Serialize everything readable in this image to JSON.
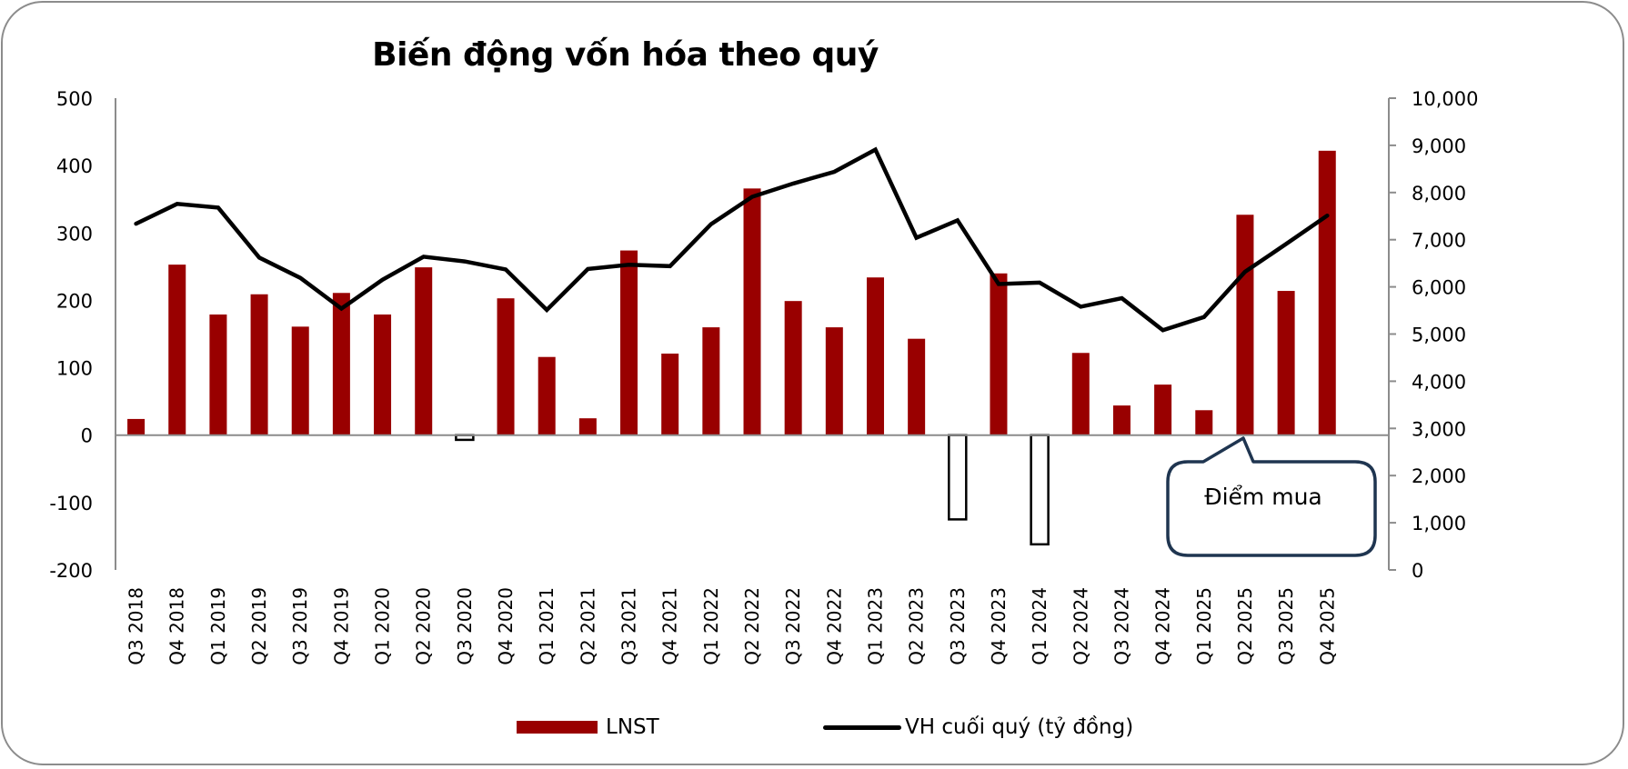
{
  "chart_data": {
    "type": "bar+line",
    "title": "Biến động vốn hóa theo quý",
    "categories": [
      "Q3 2018",
      "Q4 2018",
      "Q1 2019",
      "Q2 2019",
      "Q3 2019",
      "Q4 2019",
      "Q1 2020",
      "Q2 2020",
      "Q3 2020",
      "Q4 2020",
      "Q1 2021",
      "Q2 2021",
      "Q3 2021",
      "Q4 2021",
      "Q1 2022",
      "Q2 2022",
      "Q3 2022",
      "Q4 2022",
      "Q1 2023",
      "Q2 2023",
      "Q3 2023",
      "Q4 2023",
      "Q1 2024",
      "Q2 2024",
      "Q3 2024",
      "Q4 2024",
      "Q1 2025",
      "Q2 2025",
      "Q3 2025",
      "Q4 2025"
    ],
    "series": [
      {
        "name": "LNST",
        "type": "bar",
        "axis": "left",
        "color": "#990000",
        "negative_style": "white fill, black outline",
        "values": [
          24,
          253,
          179,
          209,
          161,
          211,
          179,
          249,
          -7,
          203,
          116,
          25,
          274,
          121,
          160,
          366,
          199,
          160,
          234,
          143,
          -125,
          240,
          -162,
          122,
          44,
          75,
          37,
          327,
          214,
          422
        ]
      },
      {
        "name": "VH cuối quý (tỷ đồng)",
        "type": "line",
        "axis": "right",
        "color": "#000000",
        "values": [
          7340,
          7760,
          7680,
          6620,
          6190,
          5540,
          6150,
          6640,
          6540,
          6370,
          5510,
          6380,
          6470,
          6440,
          7330,
          7910,
          8190,
          8440,
          8910,
          7040,
          7410,
          6060,
          6090,
          5580,
          5760,
          5080,
          5360,
          6320,
          6910,
          7510
        ]
      }
    ],
    "left_axis": {
      "min": -200,
      "max": 500,
      "step": 100,
      "ticks": [
        "500",
        "400",
        "300",
        "200",
        "100",
        "0",
        "-100",
        "-200"
      ]
    },
    "right_axis": {
      "min": 0,
      "max": 10000,
      "step": 1000,
      "ticks": [
        "10,000",
        "9,000",
        "8,000",
        "7,000",
        "6,000",
        "5,000",
        "4,000",
        "3,000",
        "2,000",
        "1,000",
        "0"
      ]
    },
    "xlabel": "",
    "ylabel": "",
    "grid": false,
    "legend_position": "bottom",
    "annotations": [
      {
        "text": "Điểm mua",
        "type": "callout",
        "points_to": "Q1 2025"
      }
    ]
  },
  "title": "Biến động vốn hóa theo quý",
  "legend": {
    "bar_label": "LNST",
    "line_label": "VH cuối quý (tỷ đồng)"
  },
  "callout": {
    "text": "Điểm mua"
  },
  "colors": {
    "bar": "#990000",
    "line": "#000000",
    "axis": "#8c8c8c",
    "callout_border": "#1f3550"
  }
}
